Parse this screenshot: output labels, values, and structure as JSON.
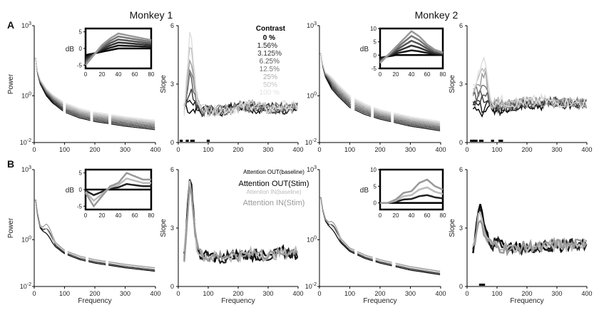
{
  "figure": {
    "monkey1_title": "Monkey 1",
    "monkey2_title": "Monkey 2",
    "row_a_label": "A",
    "row_b_label": "B"
  },
  "colors": {
    "contrast": [
      "#000000",
      "#1a1a1a",
      "#333333",
      "#555555",
      "#777777",
      "#999999",
      "#bbbbbb",
      "#dddddd"
    ],
    "attention": [
      "#000000",
      "#222222",
      "#bbbbbb",
      "#999999"
    ]
  },
  "legend_contrast": {
    "title": "Contrast",
    "items": [
      "0 %",
      "1.56%",
      "3.125%",
      "6.25%",
      "12.5%",
      "25%",
      "50%",
      "100 %"
    ]
  },
  "legend_attention": {
    "items": [
      "Attention OUT(baseline)",
      "Attention OUT(Stim)",
      "Attention IN(baseline)",
      "Attention IN(Stim)"
    ]
  },
  "axis_text": {
    "power_ylabel": "Power",
    "slope_ylabel": "Slope",
    "xlabel": "Frequency",
    "inset_ylabel": "dB",
    "power_ticks": [
      "10^3",
      "10^0",
      "10^-2"
    ],
    "slope_ticks_a": [
      "6",
      "3",
      "0"
    ],
    "slope_ticks_b": [
      "6",
      "3",
      "0"
    ],
    "freq_ticks": [
      "0",
      "100",
      "200",
      "300",
      "400"
    ],
    "inset_freq_ticks": [
      "0",
      "20",
      "40",
      "60",
      "80"
    ],
    "inset_m1_a_ticks": [
      "5",
      "0",
      "-5"
    ],
    "inset_m2_a_ticks": [
      "10",
      "5",
      "0",
      "-5"
    ],
    "inset_m1_b_ticks": [
      "5",
      "0",
      "-5"
    ],
    "inset_m2_b_ticks": [
      "10",
      "5",
      "0"
    ]
  },
  "chart_data": [
    {
      "panel": "A-monkey1-power",
      "type": "line",
      "xlabel": "Frequency",
      "ylabel": "Power",
      "xlim": [
        0,
        400
      ],
      "ylim_log10": [
        -2,
        3
      ],
      "log_y": true,
      "series_note": "8 contrast levels, power decreasing with frequency; higher contrast lifts high frequencies",
      "x": [
        5,
        10,
        20,
        40,
        60,
        100,
        150,
        200,
        300,
        400
      ],
      "series": [
        {
          "name": "0 %",
          "log10_values": [
            1.6,
            1.0,
            0.5,
            0.0,
            -0.3,
            -0.7,
            -0.95,
            -1.1,
            -1.3,
            -1.45
          ]
        },
        {
          "name": "100 %",
          "log10_values": [
            1.6,
            1.1,
            0.7,
            0.3,
            0.05,
            -0.3,
            -0.55,
            -0.7,
            -0.9,
            -1.05
          ]
        }
      ]
    },
    {
      "panel": "A-monkey1-inset",
      "type": "line",
      "xlabel": "",
      "ylabel": "dB",
      "xlim": [
        0,
        80
      ],
      "ylim": [
        -6,
        6
      ],
      "x": [
        0,
        10,
        20,
        30,
        40,
        50,
        60,
        70,
        80
      ],
      "series": [
        {
          "name": "0 %",
          "values": [
            -2,
            -1.5,
            -1,
            -0.5,
            0,
            0,
            0,
            0,
            0
          ]
        },
        {
          "name": "100 %",
          "values": [
            -5,
            -2,
            1,
            3,
            4.5,
            4,
            3.5,
            3,
            2.5
          ]
        }
      ]
    },
    {
      "panel": "A-monkey1-slope",
      "type": "line",
      "xlabel": "",
      "ylabel": "Slope",
      "xlim": [
        0,
        400
      ],
      "ylim": [
        0,
        6
      ],
      "x": [
        20,
        40,
        60,
        80,
        100,
        150,
        200,
        250,
        300,
        350,
        400
      ],
      "series": [
        {
          "name": "0 %",
          "values": [
            2.0,
            1.6,
            1.8,
            1.5,
            1.7,
            1.6,
            1.9,
            1.7,
            1.8,
            1.7,
            1.8
          ]
        },
        {
          "name": "100 %",
          "values": [
            1.5,
            6.0,
            2.5,
            1.8,
            1.6,
            1.7,
            1.8,
            2.0,
            1.7,
            1.9,
            1.8
          ]
        }
      ]
    },
    {
      "panel": "A-monkey2-power",
      "type": "line",
      "xlabel": "",
      "ylabel": "",
      "xlim": [
        0,
        400
      ],
      "ylim_log10": [
        -2,
        3
      ],
      "log_y": true,
      "x": [
        5,
        10,
        20,
        40,
        60,
        100,
        150,
        200,
        300,
        400
      ],
      "series": [
        {
          "name": "0 %",
          "log10_values": [
            1.8,
            1.3,
            0.8,
            0.3,
            0.0,
            -0.5,
            -0.8,
            -1.0,
            -1.3,
            -1.5
          ]
        },
        {
          "name": "100 %",
          "log10_values": [
            1.8,
            1.4,
            1.0,
            0.8,
            0.5,
            0.0,
            -0.35,
            -0.6,
            -0.9,
            -1.1
          ]
        }
      ]
    },
    {
      "panel": "A-monkey2-inset",
      "type": "line",
      "xlabel": "",
      "ylabel": "dB",
      "xlim": [
        0,
        80
      ],
      "ylim": [
        -5,
        10
      ],
      "x": [
        0,
        10,
        20,
        30,
        40,
        50,
        60,
        70,
        80
      ],
      "series": [
        {
          "name": "0 %",
          "values": [
            -1,
            -0.5,
            0,
            0,
            0,
            0,
            0,
            0,
            0
          ]
        },
        {
          "name": "100 %",
          "values": [
            -3,
            0,
            3,
            6,
            9,
            7,
            4,
            2,
            1
          ]
        }
      ]
    },
    {
      "panel": "A-monkey2-slope",
      "type": "line",
      "xlabel": "",
      "ylabel": "Slope",
      "xlim": [
        0,
        400
      ],
      "ylim": [
        0,
        6
      ],
      "x": [
        20,
        40,
        60,
        80,
        100,
        150,
        200,
        250,
        300,
        350,
        400
      ],
      "series": [
        {
          "name": "0 %",
          "values": [
            1.8,
            1.5,
            1.4,
            1.9,
            1.6,
            1.8,
            2.0,
            1.9,
            2.1,
            1.9,
            2.0
          ]
        },
        {
          "name": "100 %",
          "values": [
            3.0,
            3.5,
            4.5,
            2.0,
            2.2,
            2.0,
            2.1,
            2.2,
            2.0,
            2.1,
            2.0
          ]
        }
      ]
    },
    {
      "panel": "B-monkey1-power",
      "type": "line",
      "xlabel": "Frequency",
      "ylabel": "Power",
      "xlim": [
        0,
        400
      ],
      "ylim_log10": [
        -2,
        3
      ],
      "log_y": true,
      "x": [
        5,
        10,
        20,
        40,
        60,
        100,
        150,
        200,
        300,
        400
      ],
      "series": [
        {
          "name": "Attention OUT(baseline)",
          "log10_values": [
            1.7,
            1.1,
            0.5,
            0.2,
            -0.2,
            -0.6,
            -0.85,
            -1.0,
            -1.2,
            -1.35
          ]
        },
        {
          "name": "Attention IN(Stim)",
          "log10_values": [
            1.7,
            1.2,
            0.6,
            0.5,
            0.0,
            -0.45,
            -0.7,
            -0.85,
            -1.05,
            -1.2
          ]
        }
      ]
    },
    {
      "panel": "B-monkey1-inset",
      "type": "line",
      "xlabel": "",
      "ylabel": "dB",
      "xlim": [
        0,
        80
      ],
      "ylim": [
        -6,
        6
      ],
      "x": [
        0,
        10,
        20,
        30,
        40,
        50,
        60,
        70,
        80
      ],
      "series": [
        {
          "name": "Attention OUT(baseline)",
          "values": [
            0,
            0,
            0,
            0,
            0,
            0,
            0,
            0,
            0
          ]
        },
        {
          "name": "Attention IN(Stim)",
          "values": [
            -1,
            -5,
            -2,
            1,
            2,
            5,
            4,
            3,
            3
          ]
        }
      ]
    },
    {
      "panel": "B-monkey1-slope",
      "type": "line",
      "xlabel": "Frequency",
      "ylabel": "Slope",
      "xlim": [
        0,
        400
      ],
      "ylim": [
        0,
        6
      ],
      "x": [
        20,
        40,
        60,
        80,
        100,
        150,
        200,
        250,
        300,
        350,
        400
      ],
      "series": [
        {
          "name": "Attention OUT(baseline)",
          "values": [
            1.6,
            6.0,
            2.0,
            1.5,
            1.6,
            1.4,
            1.7,
            1.6,
            1.5,
            1.8,
            1.6
          ]
        },
        {
          "name": "Attention IN(Stim)",
          "values": [
            1.5,
            5.5,
            2.2,
            1.6,
            1.5,
            1.6,
            1.5,
            1.8,
            1.6,
            1.7,
            1.9
          ]
        }
      ]
    },
    {
      "panel": "B-monkey2-power",
      "type": "line",
      "xlabel": "Frequency",
      "ylabel": "",
      "xlim": [
        0,
        400
      ],
      "ylim_log10": [
        -2,
        3
      ],
      "log_y": true,
      "x": [
        5,
        10,
        20,
        40,
        60,
        100,
        150,
        200,
        300,
        400
      ],
      "series": [
        {
          "name": "Attention OUT(baseline)",
          "log10_values": [
            1.8,
            1.3,
            0.8,
            0.4,
            0.0,
            -0.5,
            -0.8,
            -1.0,
            -1.3,
            -1.5
          ]
        },
        {
          "name": "Attention IN(Stim)",
          "log10_values": [
            1.8,
            1.35,
            0.9,
            0.6,
            0.2,
            -0.35,
            -0.65,
            -0.85,
            -1.15,
            -1.35
          ]
        }
      ]
    },
    {
      "panel": "B-monkey2-inset",
      "type": "line",
      "xlabel": "",
      "ylabel": "dB",
      "xlim": [
        0,
        80
      ],
      "ylim": [
        -2,
        10
      ],
      "x": [
        0,
        10,
        20,
        30,
        40,
        50,
        60,
        70,
        80
      ],
      "series": [
        {
          "name": "Attention OUT(baseline)",
          "values": [
            0,
            0,
            0,
            0,
            0,
            0,
            0,
            0,
            0
          ]
        },
        {
          "name": "Attention IN(Stim)",
          "values": [
            0,
            0,
            1,
            3,
            3.5,
            6,
            7,
            5,
            4
          ]
        }
      ]
    },
    {
      "panel": "B-monkey2-slope",
      "type": "line",
      "xlabel": "Frequency",
      "ylabel": "Slope",
      "xlim": [
        0,
        400
      ],
      "ylim": [
        0,
        6
      ],
      "x": [
        20,
        40,
        60,
        80,
        100,
        150,
        200,
        250,
        300,
        350,
        400
      ],
      "series": [
        {
          "name": "Attention OUT(baseline)",
          "values": [
            1.8,
            4.2,
            3.0,
            2.0,
            2.5,
            2.0,
            1.9,
            2.1,
            2.0,
            2.2,
            2.1
          ]
        },
        {
          "name": "Attention IN(Stim)",
          "values": [
            1.9,
            3.6,
            2.5,
            2.2,
            2.0,
            1.9,
            2.1,
            2.0,
            2.2,
            2.1,
            2.3
          ]
        }
      ]
    }
  ]
}
